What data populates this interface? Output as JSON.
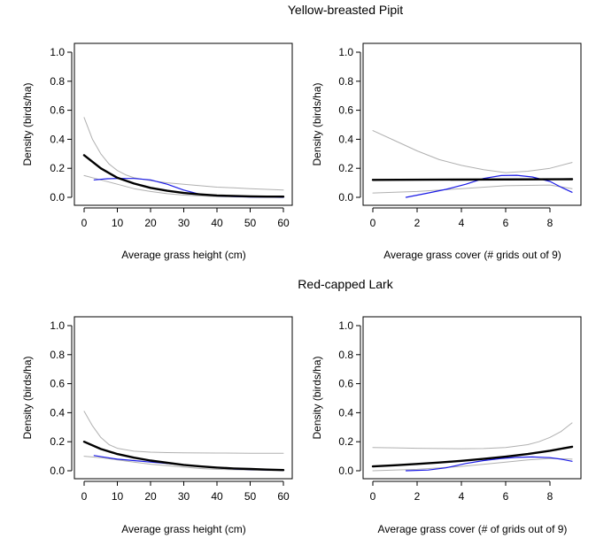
{
  "figure": {
    "section_titles": [
      "Yellow-breasted Pipit",
      "Red-capped Lark"
    ]
  },
  "chart_data": [
    {
      "type": "line",
      "panel": "pipit-height",
      "xlabel": "Average grass height (cm)",
      "ylabel": "Density (birds/ha)",
      "xlim": [
        0,
        60
      ],
      "ylim": [
        0,
        1.0
      ],
      "xticks": [
        "0",
        "10",
        "20",
        "30",
        "40",
        "50",
        "60"
      ],
      "yticks": [
        "0.0",
        "0.2",
        "0.4",
        "0.6",
        "0.8",
        "1.0"
      ],
      "series": [
        {
          "role": "fit",
          "color": "#000000",
          "x": [
            0,
            5,
            10,
            15,
            20,
            25,
            30,
            35,
            40,
            45,
            50,
            55,
            60
          ],
          "y": [
            0.29,
            0.2,
            0.135,
            0.095,
            0.065,
            0.045,
            0.03,
            0.02,
            0.013,
            0.01,
            0.007,
            0.005,
            0.005
          ]
        },
        {
          "role": "upper",
          "color": "#b0b0b0",
          "x": [
            0,
            2.5,
            5,
            7.5,
            10,
            12.5,
            15,
            20,
            25,
            30,
            35,
            40,
            45,
            50,
            55,
            60
          ],
          "y": [
            0.55,
            0.4,
            0.3,
            0.23,
            0.185,
            0.155,
            0.135,
            0.115,
            0.1,
            0.09,
            0.08,
            0.07,
            0.065,
            0.06,
            0.055,
            0.05
          ]
        },
        {
          "role": "lower",
          "color": "#b0b0b0",
          "x": [
            0,
            5,
            10,
            15,
            20,
            25,
            30,
            35,
            40,
            45,
            50,
            55,
            60
          ],
          "y": [
            0.15,
            0.12,
            0.09,
            0.06,
            0.04,
            0.025,
            0.015,
            0.01,
            0.005,
            0.003,
            0.002,
            0.001,
            0.0
          ]
        },
        {
          "role": "observed",
          "color": "#1a1ae6",
          "x": [
            3,
            7,
            10,
            15,
            20,
            25,
            30,
            35,
            40,
            45,
            50,
            55,
            60
          ],
          "y": [
            0.12,
            0.128,
            0.13,
            0.13,
            0.12,
            0.09,
            0.05,
            0.02,
            0.01,
            0.005,
            0.002,
            0.001,
            0.0
          ]
        }
      ]
    },
    {
      "type": "line",
      "panel": "pipit-cover",
      "xlabel": "Average grass cover (# grids out of 9)",
      "ylabel": "Density (birds/ha)",
      "xlim": [
        0,
        9
      ],
      "ylim": [
        0,
        1.0
      ],
      "xticks": [
        "0",
        "2",
        "4",
        "6",
        "8"
      ],
      "yticks": [
        "0.0",
        "0.2",
        "0.4",
        "0.6",
        "0.8",
        "1.0"
      ],
      "series": [
        {
          "role": "fit",
          "color": "#000000",
          "x": [
            0,
            9
          ],
          "y": [
            0.12,
            0.125
          ]
        },
        {
          "role": "upper",
          "color": "#b0b0b0",
          "x": [
            0,
            1,
            2,
            3,
            4,
            5,
            6,
            7,
            8,
            9
          ],
          "y": [
            0.46,
            0.39,
            0.32,
            0.26,
            0.22,
            0.19,
            0.17,
            0.18,
            0.2,
            0.24
          ]
        },
        {
          "role": "lower",
          "color": "#b0b0b0",
          "x": [
            0,
            2,
            4,
            6,
            8,
            9
          ],
          "y": [
            0.03,
            0.04,
            0.06,
            0.08,
            0.085,
            0.06
          ]
        },
        {
          "role": "observed",
          "color": "#1a1ae6",
          "x": [
            1.5,
            2.5,
            3.3,
            4.2,
            5,
            5.8,
            6.5,
            7.2,
            8,
            8.5,
            9
          ],
          "y": [
            0.0,
            0.03,
            0.055,
            0.09,
            0.13,
            0.15,
            0.152,
            0.14,
            0.11,
            0.07,
            0.035
          ]
        }
      ]
    },
    {
      "type": "line",
      "panel": "lark-height",
      "xlabel": "Average grass height (cm)",
      "ylabel": "Density (birds/ha)",
      "xlim": [
        0,
        60
      ],
      "ylim": [
        0,
        1.0
      ],
      "xticks": [
        "0",
        "10",
        "20",
        "30",
        "40",
        "50",
        "60"
      ],
      "yticks": [
        "0.0",
        "0.2",
        "0.4",
        "0.6",
        "0.8",
        "1.0"
      ],
      "series": [
        {
          "role": "fit",
          "color": "#000000",
          "x": [
            0,
            5,
            10,
            15,
            20,
            25,
            30,
            35,
            40,
            45,
            50,
            55,
            60
          ],
          "y": [
            0.2,
            0.15,
            0.115,
            0.09,
            0.07,
            0.055,
            0.04,
            0.03,
            0.022,
            0.016,
            0.012,
            0.008,
            0.005
          ]
        },
        {
          "role": "upper",
          "color": "#b0b0b0",
          "x": [
            0,
            2.5,
            5,
            7.5,
            10,
            15,
            20,
            25,
            30,
            40,
            50,
            60
          ],
          "y": [
            0.41,
            0.31,
            0.23,
            0.18,
            0.155,
            0.135,
            0.128,
            0.125,
            0.123,
            0.122,
            0.121,
            0.12
          ]
        },
        {
          "role": "lower",
          "color": "#b0b0b0",
          "x": [
            0,
            5,
            10,
            15,
            20,
            25,
            30,
            35,
            40,
            50,
            60
          ],
          "y": [
            0.1,
            0.09,
            0.075,
            0.06,
            0.045,
            0.035,
            0.025,
            0.015,
            0.01,
            0.004,
            0.0
          ]
        },
        {
          "role": "observed",
          "color": "#1a1ae6",
          "x": [
            3,
            7,
            10,
            15,
            20,
            25,
            30,
            35,
            40,
            45,
            50,
            55,
            60
          ],
          "y": [
            0.105,
            0.09,
            0.08,
            0.07,
            0.06,
            0.05,
            0.04,
            0.03,
            0.02,
            0.012,
            0.008,
            0.005,
            0.003
          ]
        }
      ]
    },
    {
      "type": "line",
      "panel": "lark-cover",
      "xlabel": "Average grass cover (# of grids out of 9)",
      "ylabel": "Density (birds/ha)",
      "xlim": [
        0,
        9
      ],
      "ylim": [
        0,
        1.0
      ],
      "xticks": [
        "0",
        "2",
        "4",
        "6",
        "8"
      ],
      "yticks": [
        "0.0",
        "0.2",
        "0.4",
        "0.6",
        "0.8",
        "1.0"
      ],
      "series": [
        {
          "role": "fit",
          "color": "#000000",
          "x": [
            0,
            1,
            2,
            3,
            4,
            5,
            6,
            7,
            8,
            9
          ],
          "y": [
            0.03,
            0.038,
            0.047,
            0.057,
            0.068,
            0.082,
            0.097,
            0.115,
            0.138,
            0.165
          ]
        },
        {
          "role": "upper",
          "color": "#b0b0b0",
          "x": [
            0,
            1,
            2,
            3,
            4,
            5,
            6,
            7,
            7.5,
            8,
            8.5,
            9
          ],
          "y": [
            0.16,
            0.158,
            0.155,
            0.153,
            0.152,
            0.153,
            0.16,
            0.18,
            0.2,
            0.23,
            0.27,
            0.33
          ]
        },
        {
          "role": "lower",
          "color": "#b0b0b0",
          "x": [
            0,
            2,
            4,
            6,
            7,
            8,
            9
          ],
          "y": [
            0.0,
            0.01,
            0.03,
            0.06,
            0.075,
            0.085,
            0.08
          ]
        },
        {
          "role": "observed",
          "color": "#1a1ae6",
          "x": [
            1.5,
            2.5,
            3.3,
            4.2,
            5,
            5.8,
            6.5,
            7.2,
            8,
            8.5,
            9
          ],
          "y": [
            0.0,
            0.005,
            0.02,
            0.05,
            0.07,
            0.085,
            0.092,
            0.095,
            0.09,
            0.08,
            0.065
          ]
        }
      ]
    }
  ]
}
